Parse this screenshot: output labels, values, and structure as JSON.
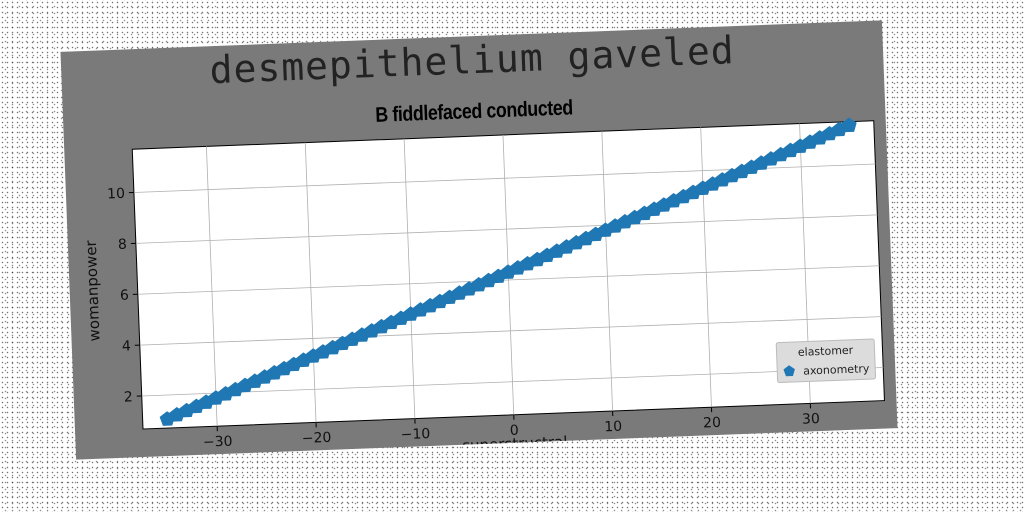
{
  "suptitle": "desmepithelium gaveled",
  "chart_data": {
    "type": "scatter",
    "title": "B fiddlefaced conducted",
    "xlabel": "superstructral",
    "ylabel": "womanpower",
    "xlim": [
      -37.5,
      37.5
    ],
    "ylim": [
      0.7,
      11.7
    ],
    "xticks": [
      -30,
      -20,
      -10,
      0,
      10,
      20,
      30
    ],
    "xtick_labels": [
      "−30",
      "−20",
      "−10",
      "0",
      "10",
      "20",
      "30"
    ],
    "yticks": [
      2,
      4,
      6,
      8,
      10
    ],
    "ytick_labels": [
      "2",
      "4",
      "6",
      "8",
      "10"
    ],
    "grid": true,
    "legend": {
      "title": "elastomer",
      "placement": "lower right"
    },
    "series": [
      {
        "name": "axonometry",
        "color": "#1f77b4",
        "marker": "pentagon",
        "x_start": -35,
        "x_end": 35,
        "x_step": 1,
        "slope": 0.15,
        "intercept": 6.3
      }
    ]
  }
}
